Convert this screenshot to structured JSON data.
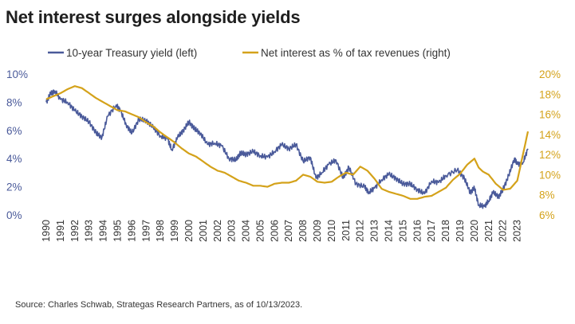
{
  "chart_data": {
    "type": "line",
    "title": "Net interest surges alongside yields",
    "source": "Source: Charles Schwab, Strategas Research Partners, as of 10/13/2023.",
    "x_ticks": [
      "1990",
      "1991",
      "1992",
      "1993",
      "1994",
      "1995",
      "1996",
      "1997",
      "1998",
      "1999",
      "2000",
      "2001",
      "2002",
      "2003",
      "2004",
      "2005",
      "2006",
      "2007",
      "2008",
      "2009",
      "2010",
      "2011",
      "2012",
      "2013",
      "2014",
      "2015",
      "2016",
      "2017",
      "2018",
      "2019",
      "2020",
      "2021",
      "2022",
      "2023"
    ],
    "x_range": [
      1990,
      2023.75
    ],
    "left_axis": {
      "ylim": [
        0,
        10
      ],
      "ticks": [
        0,
        2,
        4,
        6,
        8,
        10
      ],
      "tick_labels": [
        "0%",
        "2%",
        "4%",
        "6%",
        "8%",
        "10%"
      ],
      "color": "#4a5a9a"
    },
    "right_axis": {
      "ylim": [
        6,
        20
      ],
      "ticks": [
        6,
        8,
        10,
        12,
        14,
        16,
        18,
        20
      ],
      "tick_labels": [
        "6%",
        "8%",
        "10%",
        "12%",
        "14%",
        "16%",
        "18%",
        "20%"
      ],
      "color": "#d4a21a"
    },
    "legend_placement": "top",
    "grid": false,
    "series": [
      {
        "name": "10-year Treasury yield (left)",
        "axis": "left",
        "color": "#4a5a9a",
        "x": [
          1990.0,
          1990.3,
          1990.6,
          1991.0,
          1991.5,
          1992.0,
          1992.5,
          1993.0,
          1993.5,
          1993.9,
          1994.3,
          1994.9,
          1995.2,
          1995.6,
          1996.0,
          1996.5,
          1997.0,
          1997.5,
          1998.0,
          1998.5,
          1998.8,
          1999.2,
          1999.6,
          2000.0,
          2000.4,
          2000.8,
          2001.3,
          2001.8,
          2002.3,
          2002.8,
          2003.3,
          2003.6,
          2004.0,
          2004.5,
          2005.0,
          2005.5,
          2006.0,
          2006.5,
          2007.0,
          2007.5,
          2008.0,
          2008.5,
          2008.9,
          2009.3,
          2009.8,
          2010.3,
          2010.8,
          2011.2,
          2011.7,
          2012.3,
          2012.6,
          2013.0,
          2013.5,
          2014.0,
          2014.5,
          2015.0,
          2015.5,
          2016.0,
          2016.5,
          2017.0,
          2017.5,
          2018.0,
          2018.8,
          2019.3,
          2019.7,
          2020.0,
          2020.3,
          2020.7,
          2021.0,
          2021.3,
          2021.7,
          2022.0,
          2022.4,
          2022.8,
          2023.0,
          2023.4,
          2023.75
        ],
        "values": [
          8.0,
          8.6,
          8.8,
          8.2,
          8.0,
          7.4,
          7.0,
          6.6,
          5.8,
          5.5,
          7.0,
          7.8,
          7.4,
          6.4,
          5.8,
          6.8,
          6.7,
          6.2,
          5.6,
          5.4,
          4.6,
          5.5,
          6.0,
          6.6,
          6.1,
          5.8,
          5.0,
          5.1,
          4.9,
          4.0,
          3.9,
          4.4,
          4.3,
          4.5,
          4.2,
          4.1,
          4.5,
          5.0,
          4.7,
          5.0,
          3.8,
          4.1,
          2.6,
          3.0,
          3.6,
          3.9,
          2.6,
          3.4,
          2.2,
          2.0,
          1.6,
          1.9,
          2.5,
          2.9,
          2.6,
          2.2,
          2.2,
          1.8,
          1.5,
          2.4,
          2.3,
          2.8,
          3.2,
          2.6,
          1.6,
          1.9,
          0.7,
          0.6,
          1.0,
          1.6,
          1.3,
          1.8,
          2.8,
          4.0,
          3.6,
          3.7,
          4.7
        ]
      },
      {
        "name": "Net interest as % of tax revenues (right)",
        "axis": "right",
        "color": "#d4a21a",
        "x": [
          1990.0,
          1990.5,
          1991.0,
          1991.5,
          1992.0,
          1992.5,
          1993.0,
          1993.5,
          1994.0,
          1994.5,
          1995.0,
          1995.5,
          1996.0,
          1996.5,
          1997.0,
          1997.5,
          1998.0,
          1998.5,
          1999.0,
          1999.5,
          2000.0,
          2000.5,
          2001.0,
          2001.5,
          2002.0,
          2002.5,
          2003.0,
          2003.5,
          2004.0,
          2004.5,
          2005.0,
          2005.5,
          2006.0,
          2006.5,
          2007.0,
          2007.5,
          2008.0,
          2008.5,
          2009.0,
          2009.5,
          2010.0,
          2010.5,
          2011.0,
          2011.5,
          2012.0,
          2012.5,
          2013.0,
          2013.5,
          2014.0,
          2014.5,
          2015.0,
          2015.5,
          2016.0,
          2016.5,
          2017.0,
          2017.5,
          2018.0,
          2018.5,
          2019.0,
          2019.5,
          2020.0,
          2020.3,
          2020.6,
          2021.0,
          2021.5,
          2022.0,
          2022.5,
          2023.0,
          2023.4,
          2023.75
        ],
        "values": [
          17.5,
          17.8,
          18.1,
          18.5,
          18.8,
          18.6,
          18.1,
          17.6,
          17.2,
          16.8,
          16.4,
          16.3,
          16.0,
          15.7,
          15.2,
          14.8,
          14.2,
          13.7,
          13.2,
          12.6,
          12.1,
          11.8,
          11.3,
          10.8,
          10.4,
          10.2,
          9.8,
          9.4,
          9.2,
          8.9,
          8.9,
          8.8,
          9.1,
          9.2,
          9.2,
          9.4,
          10.0,
          9.8,
          9.3,
          9.2,
          9.3,
          9.8,
          10.2,
          10.0,
          10.8,
          10.4,
          9.6,
          8.6,
          8.3,
          8.1,
          7.9,
          7.6,
          7.6,
          7.8,
          7.9,
          8.3,
          8.7,
          9.5,
          10.1,
          11.0,
          11.6,
          10.7,
          10.3,
          10.0,
          9.1,
          8.5,
          8.6,
          9.4,
          12.0,
          14.3
        ]
      }
    ]
  }
}
